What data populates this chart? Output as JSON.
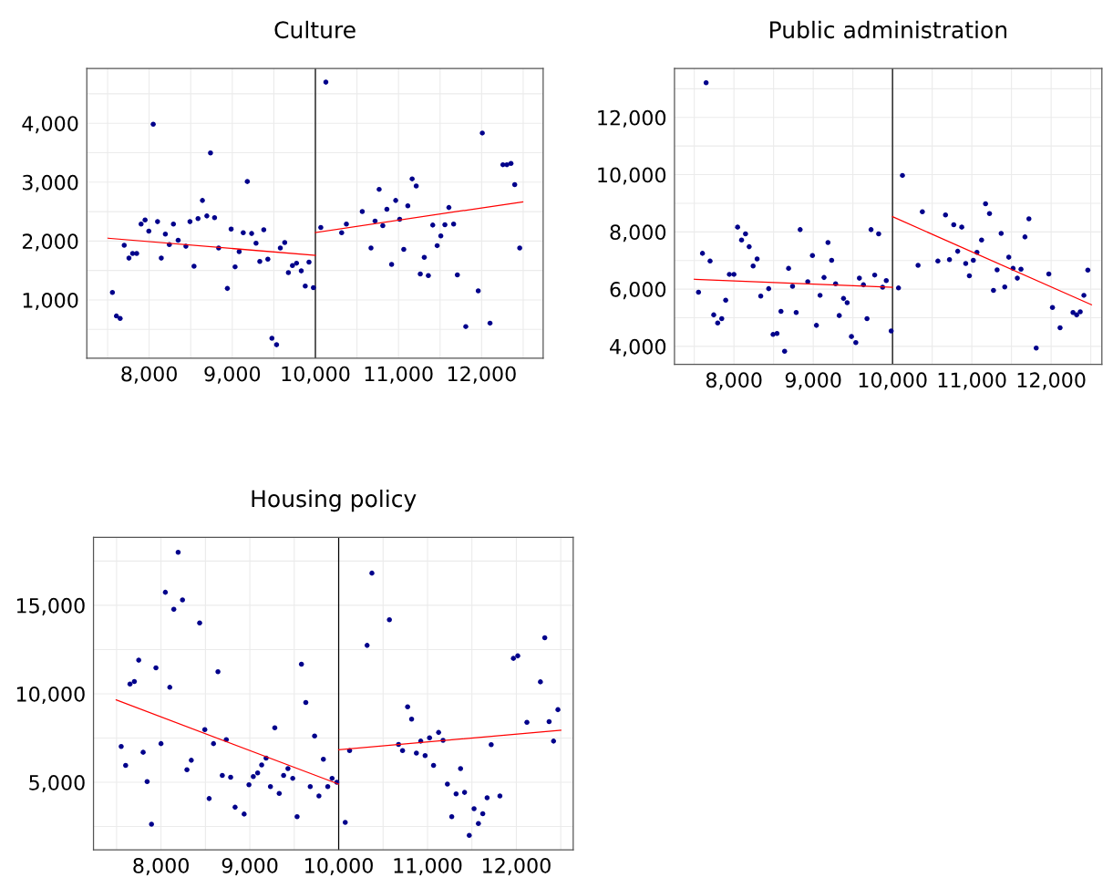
{
  "chart_data": [
    {
      "type": "scatter",
      "title": "Culture",
      "grid": true,
      "xlim": [
        7250,
        12740
      ],
      "ylim": [
        10,
        4930
      ],
      "xticks": [
        {
          "value": 7500,
          "label": null
        },
        {
          "value": 8000,
          "label": "8,000"
        },
        {
          "value": 8500,
          "label": null
        },
        {
          "value": 9000,
          "label": "9,000"
        },
        {
          "value": 9500,
          "label": null
        },
        {
          "value": 10000,
          "label": "10,000"
        },
        {
          "value": 10500,
          "label": null
        },
        {
          "value": 11000,
          "label": "11,000"
        },
        {
          "value": 11500,
          "label": null
        },
        {
          "value": 12000,
          "label": "12,000"
        },
        {
          "value": 12500,
          "label": null
        }
      ],
      "yticks": [
        {
          "value": 500,
          "label": null
        },
        {
          "value": 1000,
          "label": "1,000"
        },
        {
          "value": 1500,
          "label": null
        },
        {
          "value": 2000,
          "label": "2,000"
        },
        {
          "value": 2500,
          "label": null
        },
        {
          "value": 3000,
          "label": "3,000"
        },
        {
          "value": 3500,
          "label": null
        },
        {
          "value": 4000,
          "label": "4,000"
        },
        {
          "value": 4500,
          "label": null
        }
      ],
      "ref_lines": [
        {
          "axis": "x",
          "value": 10000,
          "color": "#000000"
        }
      ],
      "series": [
        {
          "marker": "circle",
          "color": "#00008b",
          "x": [
            7558,
            7606,
            7651,
            7700,
            7757,
            7801,
            7850,
            7903,
            7951,
            7996,
            8049,
            8101,
            8146,
            8195,
            8243,
            8292,
            8349,
            8442,
            8491,
            8540,
            8588,
            8641,
            8694,
            8738,
            8787,
            8836,
            8941,
            8986,
            9034,
            9083,
            9132,
            9181,
            9233,
            9286,
            9331,
            9379,
            9428,
            9477,
            9533,
            9578,
            9631,
            9675,
            9724,
            9773,
            9830,
            9878,
            9923,
            9976,
            10065,
            10126,
            10316,
            10373,
            10564,
            10669,
            10718,
            10767,
            10811,
            10860,
            10917,
            10966,
            11014,
            11063,
            11112,
            11164,
            11213,
            11262,
            11310,
            11359,
            11412,
            11465,
            11509,
            11558,
            11606,
            11663,
            11708,
            11809,
            11959,
            12008,
            12101,
            12256,
            12304,
            12353,
            12398,
            12458
          ],
          "values": [
            1127,
            727,
            686,
            1928,
            1710,
            1790,
            1790,
            2289,
            2357,
            2168,
            3983,
            2329,
            1710,
            2117,
            1939,
            2289,
            2014,
            1911,
            2329,
            1573,
            2380,
            2689,
            2426,
            3496,
            2397,
            1882,
            1195,
            2203,
            1562,
            1819,
            2140,
            3010,
            2128,
            1962,
            1653,
            2191,
            1693,
            348,
            239,
            1882,
            1974,
            1464,
            1584,
            1624,
            1493,
            1235,
            1642,
            1207,
            2231,
            4698,
            2140,
            2289,
            2500,
            1882,
            2340,
            2878,
            2260,
            2540,
            1602,
            2689,
            2369,
            1859,
            2597,
            3056,
            2935,
            1441,
            1722,
            1413,
            2271,
            1922,
            2088,
            2277,
            2569,
            2289,
            1424,
            548,
            1155,
            3834,
            606,
            3296,
            3296,
            3319,
            2958,
            1882
          ]
        },
        {
          "type": "line",
          "color": "#ff0000",
          "x": [
            7505,
            10000
          ],
          "values": [
            2048,
            1756
          ]
        },
        {
          "type": "line",
          "color": "#ff0000",
          "x": [
            10000,
            12495
          ],
          "values": [
            2145,
            2666
          ]
        }
      ]
    },
    {
      "type": "scatter",
      "title": "Public administration",
      "grid": true,
      "xlim": [
        7250,
        12640
      ],
      "ylim": [
        3370,
        13710
      ],
      "xticks": [
        {
          "value": 7500,
          "label": null
        },
        {
          "value": 8000,
          "label": "8,000"
        },
        {
          "value": 8500,
          "label": null
        },
        {
          "value": 9000,
          "label": "9,000"
        },
        {
          "value": 9500,
          "label": null
        },
        {
          "value": 10000,
          "label": "10,000"
        },
        {
          "value": 10500,
          "label": null
        },
        {
          "value": 11000,
          "label": "11,000"
        },
        {
          "value": 11500,
          "label": null
        },
        {
          "value": 12000,
          "label": "12,000"
        },
        {
          "value": 12500,
          "label": null
        }
      ],
      "yticks": [
        {
          "value": 4000,
          "label": "4,000"
        },
        {
          "value": 5000,
          "label": null
        },
        {
          "value": 6000,
          "label": "6,000"
        },
        {
          "value": 7000,
          "label": null
        },
        {
          "value": 8000,
          "label": "8,000"
        },
        {
          "value": 9000,
          "label": null
        },
        {
          "value": 10000,
          "label": "10,000"
        },
        {
          "value": 11000,
          "label": null
        },
        {
          "value": 12000,
          "label": "12,000"
        },
        {
          "value": 13000,
          "label": null
        }
      ],
      "ref_lines": [
        {
          "axis": "x",
          "value": 10000,
          "color": "#000000"
        }
      ],
      "series": [
        {
          "marker": "circle",
          "color": "#00008b",
          "x": [
            7553,
            7603,
            7649,
            7699,
            7745,
            7795,
            7846,
            7896,
            7942,
            8000,
            8046,
            8096,
            8146,
            8192,
            8242,
            8292,
            8338,
            8438,
            8493,
            8543,
            8593,
            8639,
            8689,
            8739,
            8785,
            8835,
            8931,
            8990,
            9040,
            9086,
            9136,
            9186,
            9232,
            9282,
            9328,
            9382,
            9428,
            9482,
            9537,
            9582,
            9633,
            9678,
            9729,
            9775,
            9825,
            9875,
            9921,
            9983,
            10075,
            10125,
            10322,
            10376,
            10572,
            10668,
            10718,
            10772,
            10873,
            10822,
            10923,
            10969,
            11019,
            11065,
            11123,
            11173,
            11223,
            11273,
            11319,
            11370,
            11415,
            11466,
            11520,
            11574,
            11620,
            11670,
            11720,
            11812,
            11971,
            12017,
            12113,
            12276,
            12322,
            12367,
            12413,
            12463
          ],
          "values": [
            5893,
            7249,
            13209,
            6980,
            5099,
            4818,
            4965,
            5612,
            6516,
            6516,
            8165,
            7713,
            7933,
            7481,
            6809,
            7053,
            5759,
            6015,
            4415,
            4452,
            5221,
            3829,
            6724,
            6101,
            5185,
            8079,
            6260,
            7176,
            4733,
            5783,
            6406,
            7628,
            7005,
            6186,
            5075,
            5673,
            5527,
            4342,
            4134,
            6382,
            6150,
            4965,
            8079,
            6492,
            7933,
            6064,
            6296,
            4537,
            6040,
            9973,
            6833,
            8702,
            6980,
            8592,
            7029,
            8250,
            8165,
            7322,
            6895,
            6467,
            7005,
            7286,
            7713,
            8983,
            8641,
            5954,
            6675,
            7945,
            6076,
            7115,
            6724,
            6382,
            6699,
            7823,
            8458,
            3939,
            6528,
            5356,
            4647,
            5185,
            5099,
            5209,
            5783,
            6663
          ]
        },
        {
          "type": "line",
          "color": "#ff0000",
          "x": [
            7499,
            10000
          ],
          "values": [
            6345,
            6064
          ]
        },
        {
          "type": "line",
          "color": "#ff0000",
          "x": [
            10000,
            12509
          ],
          "values": [
            8531,
            5454
          ]
        }
      ]
    },
    {
      "type": "scatter",
      "title": "Housing policy",
      "grid": true,
      "xlim": [
        7240,
        12640
      ],
      "ylim": [
        1180,
        18840
      ],
      "xticks": [
        {
          "value": 7500,
          "label": null
        },
        {
          "value": 8000,
          "label": "8,000"
        },
        {
          "value": 8500,
          "label": null
        },
        {
          "value": 9000,
          "label": "9,000"
        },
        {
          "value": 9500,
          "label": null
        },
        {
          "value": 10000,
          "label": "10,000"
        },
        {
          "value": 10500,
          "label": null
        },
        {
          "value": 11000,
          "label": "11,000"
        },
        {
          "value": 11500,
          "label": null
        },
        {
          "value": 12000,
          "label": "12,000"
        },
        {
          "value": 12500,
          "label": null
        }
      ],
      "yticks": [
        {
          "value": 2500,
          "label": null
        },
        {
          "value": 5000,
          "label": "5,000"
        },
        {
          "value": 7500,
          "label": null
        },
        {
          "value": 10000,
          "label": "10,000"
        },
        {
          "value": 12500,
          "label": null
        },
        {
          "value": 15000,
          "label": "15,000"
        },
        {
          "value": 17500,
          "label": null
        }
      ],
      "ref_lines": [
        {
          "axis": "x",
          "value": 10000,
          "color": "#000000"
        }
      ],
      "series": [
        {
          "marker": "circle",
          "color": "#00008b",
          "x": [
            7552,
            7602,
            7651,
            7700,
            7749,
            7799,
            7844,
            7893,
            7943,
            8000,
            8049,
            8099,
            8144,
            8193,
            8242,
            8292,
            8341,
            8435,
            8493,
            8542,
            8591,
            8641,
            8690,
            8735,
            8784,
            8834,
            8936,
            8990,
            9039,
            9088,
            9133,
            9183,
            9232,
            9281,
            9331,
            9380,
            9429,
            9483,
            9532,
            9581,
            9630,
            9680,
            9729,
            9778,
            9828,
            9877,
            9926,
            9979,
            10074,
            10123,
            10320,
            10374,
            10571,
            10674,
            10719,
            10776,
            10821,
            10875,
            10924,
            10973,
            11023,
            11068,
            11125,
            11175,
            11224,
            11273,
            11322,
            11372,
            11417,
            11470,
            11524,
            11573,
            11622,
            11671,
            11717,
            11815,
            11967,
            12016,
            12119,
            12271,
            12320,
            12369,
            12419,
            12468
          ],
          "values": [
            7020,
            5959,
            10551,
            10694,
            11898,
            6694,
            5041,
            2633,
            11469,
            7184,
            15735,
            10367,
            14776,
            18000,
            15306,
            5714,
            6245,
            14000,
            7980,
            4082,
            7184,
            11245,
            5388,
            7408,
            5286,
            3592,
            3204,
            4857,
            5326,
            5531,
            5980,
            6367,
            4755,
            8082,
            4367,
            5388,
            5776,
            5225,
            3061,
            11673,
            9510,
            4755,
            7612,
            4224,
            6306,
            4755,
            5225,
            5000,
            2735,
            6796,
            12735,
            16816,
            14184,
            7143,
            6796,
            9265,
            8571,
            6653,
            7327,
            6510,
            7510,
            5959,
            7816,
            7367,
            4898,
            3061,
            4347,
            5776,
            4429,
            2000,
            3510,
            2673,
            3224,
            4122,
            7122,
            4224,
            12000,
            12143,
            8388,
            10673,
            13163,
            8429,
            7327,
            9102
          ]
        },
        {
          "type": "line",
          "color": "#ff0000",
          "x": [
            7495,
            10000
          ],
          "values": [
            9653,
            4898
          ]
        },
        {
          "type": "line",
          "color": "#ff0000",
          "x": [
            10000,
            12501
          ],
          "values": [
            6837,
            7939
          ]
        }
      ]
    }
  ]
}
